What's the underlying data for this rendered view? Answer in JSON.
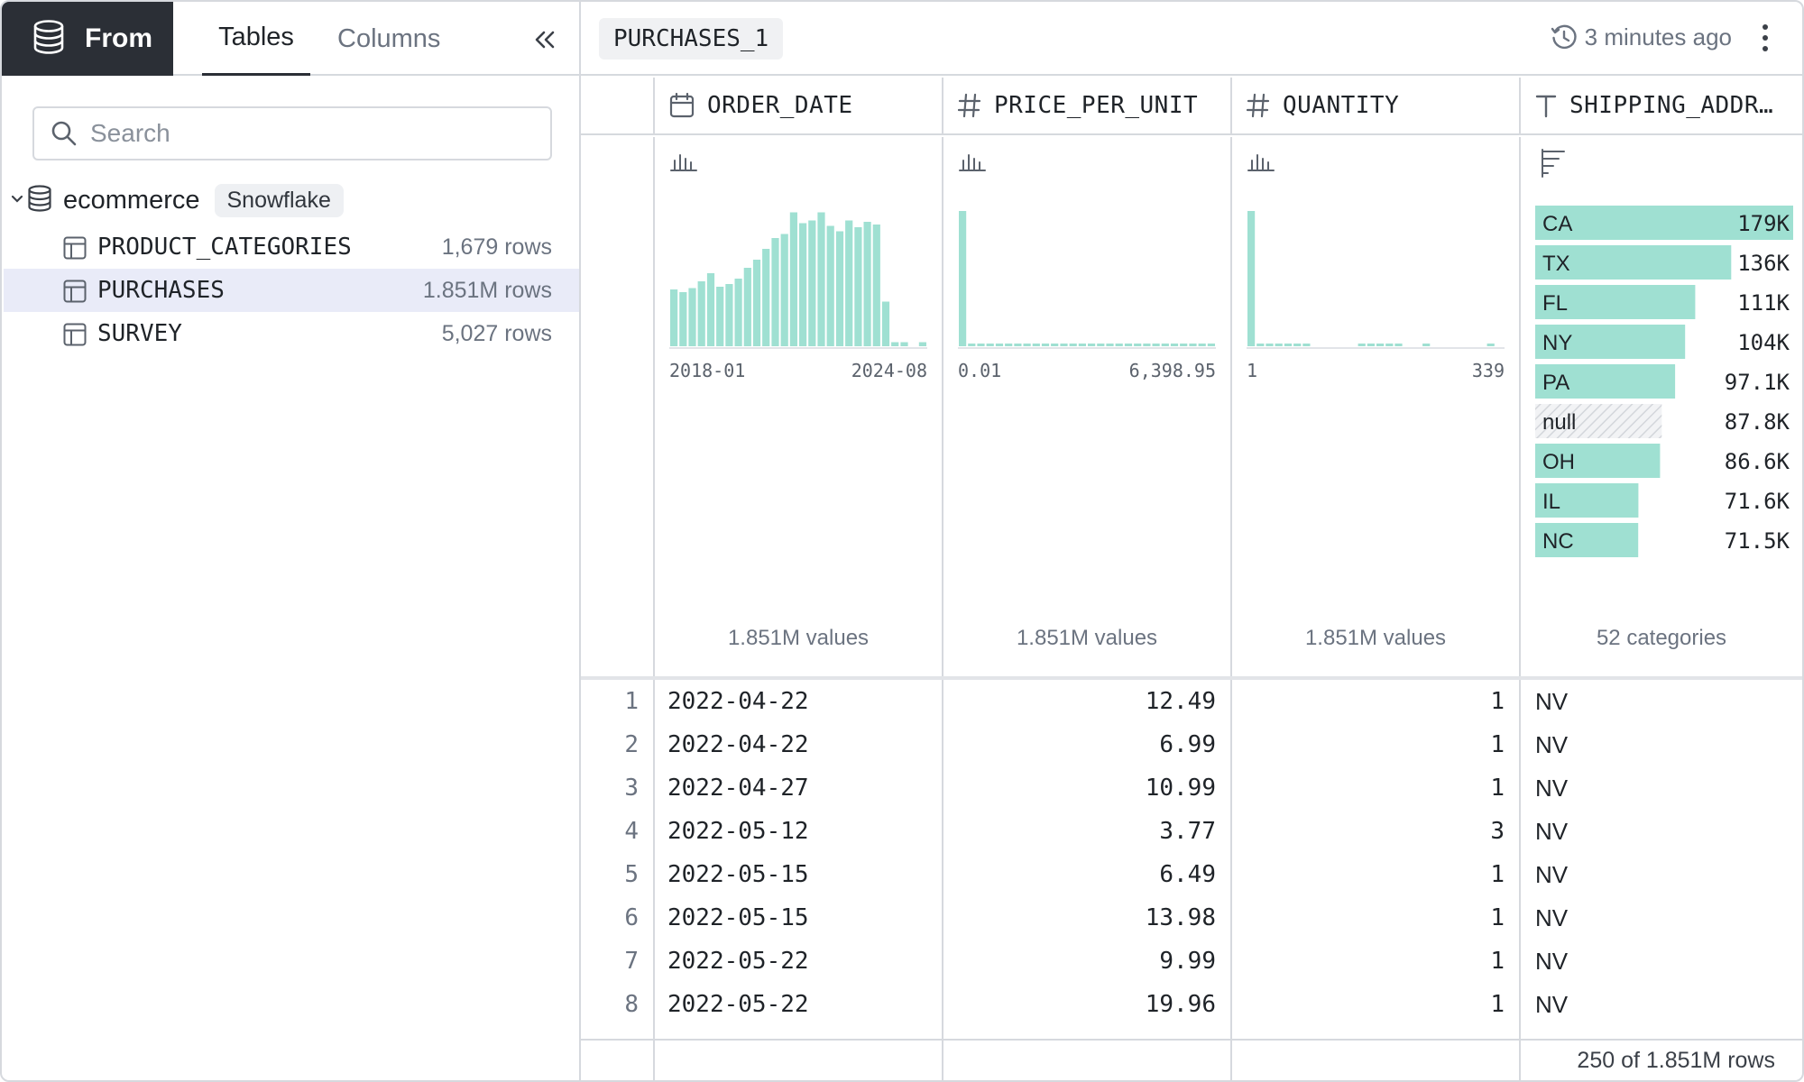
{
  "left_panel": {
    "from_label": "From",
    "tabs": [
      {
        "label": "Tables",
        "active": true
      },
      {
        "label": "Columns",
        "active": false
      }
    ],
    "search": {
      "placeholder": "Search",
      "value": ""
    },
    "database": {
      "name": "ecommerce",
      "badge": "Snowflake",
      "expanded": true
    },
    "tables": [
      {
        "name": "PRODUCT_CATEGORIES",
        "rows": "1,679 rows",
        "selected": false
      },
      {
        "name": "PURCHASES",
        "rows": "1.851M rows",
        "selected": true
      },
      {
        "name": "SURVEY",
        "rows": "5,027 rows",
        "selected": false
      }
    ]
  },
  "right_panel": {
    "table_name": "PURCHASES_1",
    "updated": "3 minutes ago",
    "columns": [
      {
        "name": "ORDER_DATE",
        "type_icon": "calendar-icon"
      },
      {
        "name": "PRICE_PER_UNIT",
        "type_icon": "hash-icon"
      },
      {
        "name": "QUANTITY",
        "type_icon": "hash-icon"
      },
      {
        "name": "SHIPPING_ADDR…",
        "type_icon": "text-type-icon"
      }
    ],
    "summaries": [
      {
        "kind": "histogram",
        "min_label": "2018-01",
        "max_label": "2024-08",
        "count_label": "1.851M values"
      },
      {
        "kind": "histogram",
        "min_label": "0.01",
        "max_label": "6,398.95",
        "count_label": "1.851M values"
      },
      {
        "kind": "histogram",
        "min_label": "1",
        "max_label": "339",
        "count_label": "1.851M values"
      },
      {
        "kind": "categories",
        "count_label": "52 categories"
      }
    ],
    "rows": [
      {
        "n": "1",
        "order_date": "2022-04-22",
        "price": "12.49",
        "quantity": "1",
        "state": "NV"
      },
      {
        "n": "2",
        "order_date": "2022-04-22",
        "price": "6.99",
        "quantity": "1",
        "state": "NV"
      },
      {
        "n": "3",
        "order_date": "2022-04-27",
        "price": "10.99",
        "quantity": "1",
        "state": "NV"
      },
      {
        "n": "4",
        "order_date": "2022-05-12",
        "price": "3.77",
        "quantity": "3",
        "state": "NV"
      },
      {
        "n": "5",
        "order_date": "2022-05-15",
        "price": "6.49",
        "quantity": "1",
        "state": "NV"
      },
      {
        "n": "6",
        "order_date": "2022-05-15",
        "price": "13.98",
        "quantity": "1",
        "state": "NV"
      },
      {
        "n": "7",
        "order_date": "2022-05-22",
        "price": "9.99",
        "quantity": "1",
        "state": "NV"
      },
      {
        "n": "8",
        "order_date": "2022-05-22",
        "price": "19.96",
        "quantity": "1",
        "state": "NV"
      }
    ],
    "footer": "250 of 1.851M rows"
  },
  "colors": {
    "bar_fill": "#9fe0d2",
    "header_dark": "#2b2f36",
    "selected_row": "#e9ebf8",
    "border": "#d6d9de"
  },
  "chart_data": [
    {
      "type": "bar",
      "title": "",
      "x_range": [
        "2018-01",
        "2024-08"
      ],
      "values": [
        0.42,
        0.4,
        0.43,
        0.48,
        0.54,
        0.44,
        0.46,
        0.5,
        0.58,
        0.64,
        0.72,
        0.8,
        0.83,
        0.99,
        0.91,
        0.93,
        0.99,
        0.89,
        0.85,
        0.93,
        0.88,
        0.92,
        0.9,
        0.33,
        0.03,
        0.03,
        0.0,
        0.03
      ]
    },
    {
      "type": "bar",
      "title": "",
      "x_range": [
        "0.01",
        "6,398.95"
      ],
      "values": [
        1.0,
        0.02,
        0.02,
        0.02,
        0.02,
        0.02,
        0.02,
        0.02,
        0.02,
        0.02,
        0.02,
        0.02,
        0.02,
        0.02,
        0.02,
        0.02,
        0.02,
        0.02,
        0.02,
        0.02,
        0.02,
        0.02,
        0.02,
        0.02,
        0.02,
        0.02,
        0.02,
        0.02
      ]
    },
    {
      "type": "bar",
      "title": "",
      "x_range": [
        "1",
        "339"
      ],
      "values": [
        1.0,
        0.02,
        0.02,
        0.02,
        0.02,
        0.02,
        0.02,
        0.0,
        0.0,
        0.0,
        0.0,
        0.0,
        0.02,
        0.02,
        0.02,
        0.02,
        0.02,
        0.0,
        0.0,
        0.02,
        0.0,
        0.0,
        0.0,
        0.0,
        0.0,
        0.0,
        0.02,
        0.0
      ]
    },
    {
      "type": "bar",
      "orientation": "horizontal",
      "title": "",
      "categories": [
        "CA",
        "TX",
        "FL",
        "NY",
        "PA",
        "null",
        "OH",
        "IL",
        "NC"
      ],
      "labels": [
        "179K",
        "136K",
        "111K",
        "104K",
        "97.1K",
        "87.8K",
        "86.6K",
        "71.6K",
        "71.5K"
      ],
      "values": [
        179000,
        136000,
        111000,
        104000,
        97100,
        87800,
        86600,
        71600,
        71500
      ]
    }
  ]
}
